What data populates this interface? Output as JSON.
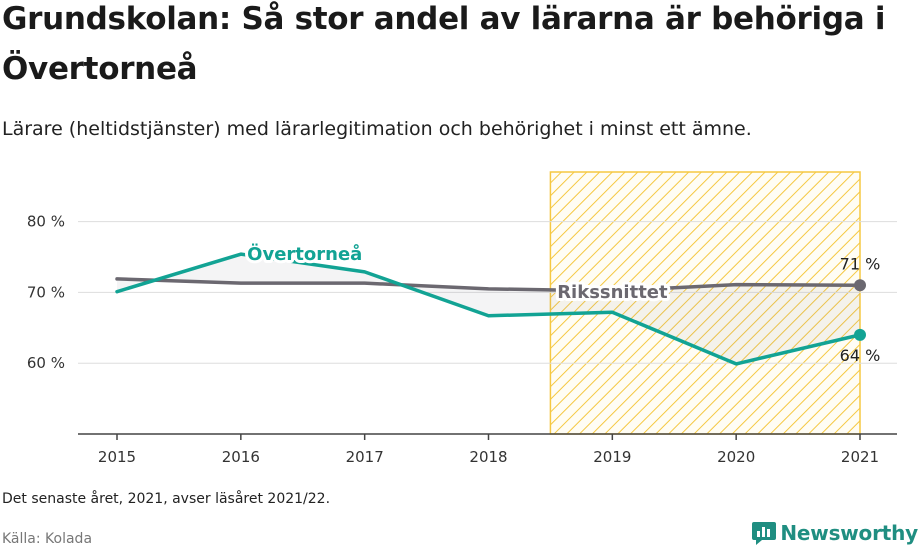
{
  "title": "Grundskolan: Så stor andel av lärarna är behöriga i Övertorneå",
  "subtitle": "Lärare (heltidstjänster) med lärarlegitimation och behörighet i minst ett ämne.",
  "footnote": "Det senaste året, 2021, avser läsåret 2021/22.",
  "source": "Källa: Kolada",
  "brand": "Newsworthy",
  "colors": {
    "overtornea": "#12a394",
    "riket": "#6b6870",
    "highlight": "#f5c842",
    "grid": "#dddddd",
    "brand": "#1f8e81"
  },
  "chart_data": {
    "type": "line",
    "x": [
      2015,
      2016,
      2017,
      2018,
      2019,
      2020,
      2021
    ],
    "ylim": [
      50,
      87
    ],
    "yticks": [
      60,
      70,
      80
    ],
    "ytick_labels": [
      "60 %",
      "70 %",
      "80 %"
    ],
    "xtick_labels": [
      "2015",
      "2016",
      "2017",
      "2018",
      "2019",
      "2020",
      "2021"
    ],
    "grid": true,
    "highlight_range": [
      2018.5,
      2021
    ],
    "series": [
      {
        "name": "Övertorneå",
        "values": [
          70.1,
          75.4,
          72.9,
          66.7,
          67.2,
          59.9,
          64.0
        ],
        "end_label": "64 %"
      },
      {
        "name": "Rikssnittet",
        "values": [
          71.9,
          71.3,
          71.3,
          70.5,
          70.2,
          71.1,
          71.0
        ],
        "end_label": "71 %"
      }
    ]
  }
}
